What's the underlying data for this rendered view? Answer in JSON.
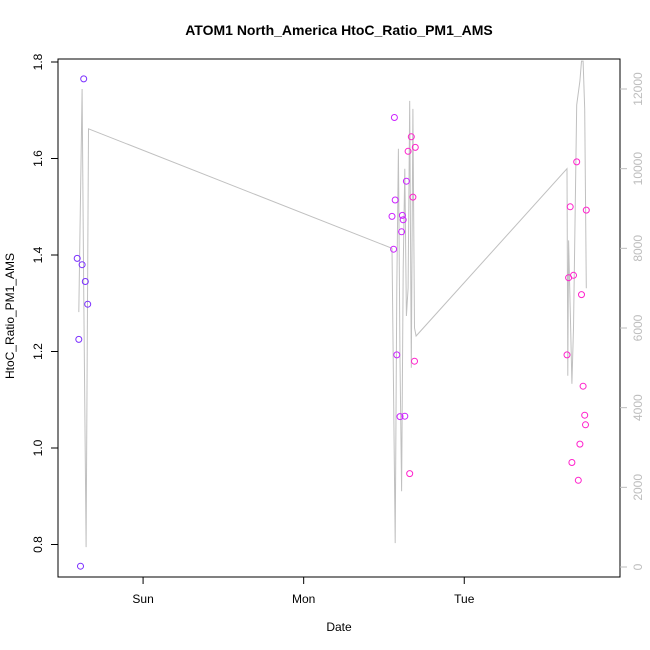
{
  "chart_data": {
    "type": "scatter",
    "title": "ATOM1 North_America HtoC_Ratio_PM1_AMS",
    "xlabel": "Date",
    "ylabel": "HtoC_Ratio_PM1_AMS",
    "x_ticks": [
      {
        "label": "Sun",
        "day": 1.0
      },
      {
        "label": "Mon",
        "day": 2.0
      },
      {
        "label": "Tue",
        "day": 3.0
      }
    ],
    "xlim_days": [
      0.52,
      3.92
    ],
    "ylim": [
      0.72,
      1.8
    ],
    "y_ticks": [
      "0.8",
      "1.0",
      "1.2",
      "1.4",
      "1.6",
      "1.8"
    ],
    "y2lim": [
      0,
      12700
    ],
    "y2_ticks": [
      "0",
      "2000",
      "4000",
      "6000",
      "8000",
      "10000",
      "12000"
    ],
    "grid": false,
    "series": [
      {
        "kind": "points",
        "colors": [
          "#7b2fff",
          "#cc22ff",
          "#ff22cc"
        ],
        "points": [
          {
            "day": 0.59,
            "y": 1.393,
            "color": "#7b2fff"
          },
          {
            "day": 0.6,
            "y": 1.225,
            "color": "#7b2fff"
          },
          {
            "day": 0.61,
            "y": 0.755,
            "color": "#7b2fff"
          },
          {
            "day": 0.62,
            "y": 1.38,
            "color": "#7b2fff"
          },
          {
            "day": 0.63,
            "y": 1.765,
            "color": "#7b2fff"
          },
          {
            "day": 0.64,
            "y": 1.345,
            "color": "#7b2fff"
          },
          {
            "day": 0.655,
            "y": 1.298,
            "color": "#7b2fff"
          },
          {
            "day": 2.55,
            "y": 1.48,
            "color": "#cc22ff"
          },
          {
            "day": 2.56,
            "y": 1.412,
            "color": "#cc22ff"
          },
          {
            "day": 2.565,
            "y": 1.685,
            "color": "#cc22ff"
          },
          {
            "day": 2.57,
            "y": 1.514,
            "color": "#cc22ff"
          },
          {
            "day": 2.58,
            "y": 1.193,
            "color": "#cc22ff"
          },
          {
            "day": 2.6,
            "y": 1.065,
            "color": "#cc22ff"
          },
          {
            "day": 2.61,
            "y": 1.448,
            "color": "#cc22ff"
          },
          {
            "day": 2.615,
            "y": 1.482,
            "color": "#cc22ff"
          },
          {
            "day": 2.62,
            "y": 1.473,
            "color": "#cc22ff"
          },
          {
            "day": 2.63,
            "y": 1.066,
            "color": "#cc22ff"
          },
          {
            "day": 2.64,
            "y": 1.553,
            "color": "#cc22ff"
          },
          {
            "day": 2.65,
            "y": 1.615,
            "color": "#ff22cc"
          },
          {
            "day": 2.66,
            "y": 0.947,
            "color": "#ff22cc"
          },
          {
            "day": 2.67,
            "y": 1.645,
            "color": "#ff22cc"
          },
          {
            "day": 2.68,
            "y": 1.52,
            "color": "#ff22cc"
          },
          {
            "day": 2.69,
            "y": 1.18,
            "color": "#ff22cc"
          },
          {
            "day": 2.695,
            "y": 1.623,
            "color": "#ff22cc"
          },
          {
            "day": 3.64,
            "y": 1.193,
            "color": "#ff22cc"
          },
          {
            "day": 3.65,
            "y": 1.353,
            "color": "#ff22cc"
          },
          {
            "day": 3.66,
            "y": 1.5,
            "color": "#ff22cc"
          },
          {
            "day": 3.67,
            "y": 0.97,
            "color": "#ff22cc"
          },
          {
            "day": 3.68,
            "y": 1.358,
            "color": "#ff22cc"
          },
          {
            "day": 3.7,
            "y": 1.593,
            "color": "#ff22cc"
          },
          {
            "day": 3.71,
            "y": 0.933,
            "color": "#ff22cc"
          },
          {
            "day": 3.72,
            "y": 1.008,
            "color": "#ff22cc"
          },
          {
            "day": 3.73,
            "y": 1.318,
            "color": "#ff22cc"
          },
          {
            "day": 3.74,
            "y": 1.128,
            "color": "#ff22cc"
          },
          {
            "day": 3.75,
            "y": 1.068,
            "color": "#ff22cc"
          },
          {
            "day": 3.755,
            "y": 1.048,
            "color": "#ff22cc"
          },
          {
            "day": 3.76,
            "y": 1.493,
            "color": "#ff22cc"
          }
        ]
      },
      {
        "kind": "line",
        "axis": "right",
        "color": "#c0c0c0",
        "points": [
          {
            "day": 0.6,
            "v": 6400
          },
          {
            "day": 0.62,
            "v": 12000
          },
          {
            "day": 0.63,
            "v": 7000
          },
          {
            "day": 0.645,
            "v": 500
          },
          {
            "day": 0.66,
            "v": 11000
          },
          {
            "day": 2.55,
            "v": 8000
          },
          {
            "day": 2.57,
            "v": 600
          },
          {
            "day": 2.58,
            "v": 7000
          },
          {
            "day": 2.59,
            "v": 10500
          },
          {
            "day": 2.6,
            "v": 5200
          },
          {
            "day": 2.61,
            "v": 1900
          },
          {
            "day": 2.62,
            "v": 7500
          },
          {
            "day": 2.63,
            "v": 10000
          },
          {
            "day": 2.64,
            "v": 6300
          },
          {
            "day": 2.65,
            "v": 7000
          },
          {
            "day": 2.66,
            "v": 11700
          },
          {
            "day": 2.67,
            "v": 5000
          },
          {
            "day": 2.68,
            "v": 11500
          },
          {
            "day": 2.69,
            "v": 6000
          },
          {
            "day": 2.7,
            "v": 5800
          },
          {
            "day": 3.64,
            "v": 10000
          },
          {
            "day": 3.645,
            "v": 4800
          },
          {
            "day": 3.65,
            "v": 8200
          },
          {
            "day": 3.66,
            "v": 6500
          },
          {
            "day": 3.67,
            "v": 4600
          },
          {
            "day": 3.68,
            "v": 6000
          },
          {
            "day": 3.7,
            "v": 11600
          },
          {
            "day": 3.72,
            "v": 12200
          },
          {
            "day": 3.73,
            "v": 12700
          },
          {
            "day": 3.74,
            "v": 12700
          },
          {
            "day": 3.75,
            "v": 11500
          },
          {
            "day": 3.76,
            "v": 7000
          }
        ]
      }
    ]
  }
}
